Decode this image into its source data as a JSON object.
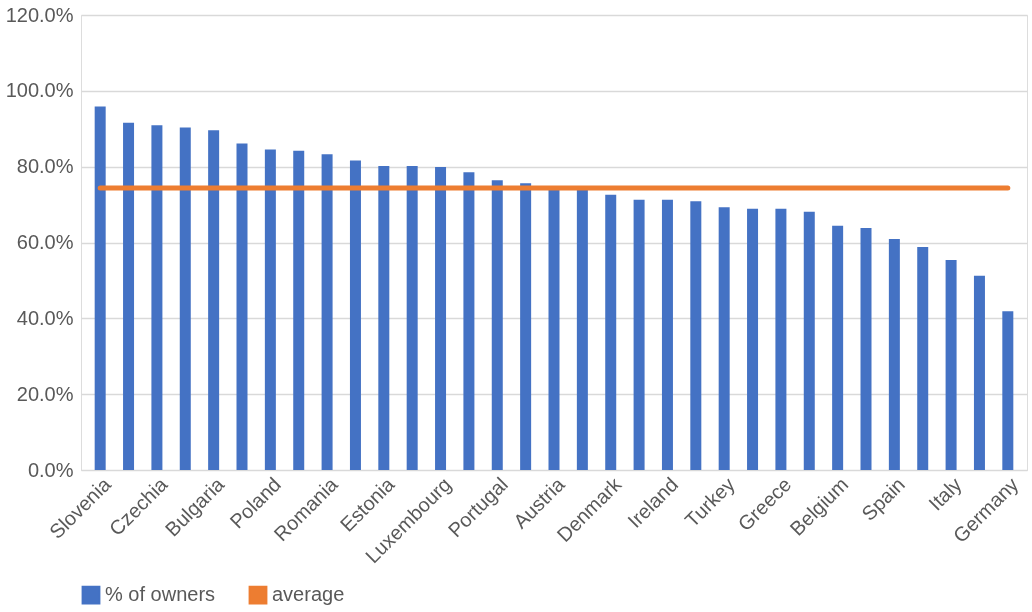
{
  "chart_data": {
    "type": "bar",
    "categories": [
      "Slovenia",
      null,
      "Czechia",
      null,
      "Bulgaria",
      null,
      "Poland",
      null,
      "Romania",
      null,
      "Estonia",
      null,
      "Luxembourg",
      null,
      "Portugal",
      null,
      "Austria",
      null,
      "Denmark",
      null,
      "Ireland",
      null,
      "Turkey",
      null,
      "Greece",
      null,
      "Belgium",
      null,
      "Spain",
      null,
      "Italy",
      null,
      "Germany"
    ],
    "series": [
      {
        "name": "% of owners",
        "color": "#4472c4",
        "values": [
          95.9,
          91.6,
          90.9,
          90.3,
          89.6,
          86.1,
          84.5,
          84.2,
          83.3,
          81.6,
          80.2,
          80.2,
          79.9,
          78.5,
          76.4,
          75.6,
          74.5,
          74.2,
          72.6,
          71.3,
          71.3,
          70.9,
          69.3,
          68.9,
          68.9,
          68.1,
          64.4,
          63.8,
          60.9,
          58.8,
          55.4,
          51.2,
          41.9
        ]
      },
      {
        "name": "average",
        "type": "line",
        "color": "#ed7d31",
        "values": [
          74.4,
          74.4,
          74.4,
          74.4,
          74.4,
          74.4,
          74.4,
          74.4,
          74.4,
          74.4,
          74.4,
          74.4,
          74.4,
          74.4,
          74.4,
          74.4,
          74.4,
          74.4,
          74.4,
          74.4,
          74.4,
          74.4,
          74.4,
          74.4,
          74.4,
          74.4,
          74.4,
          74.4,
          74.4,
          74.4,
          74.4,
          74.4,
          74.4
        ]
      }
    ],
    "ylim": [
      0,
      120
    ],
    "yticks": [
      {
        "value": 0,
        "label": "0.0%"
      },
      {
        "value": 20,
        "label": "20.0%"
      },
      {
        "value": 40,
        "label": "40.0%"
      },
      {
        "value": 60,
        "label": "60.0%"
      },
      {
        "value": 80,
        "label": "80.0%"
      },
      {
        "value": 100,
        "label": "100.0%"
      },
      {
        "value": 120,
        "label": "120.0%"
      }
    ],
    "grid": "y",
    "legend": "bottom"
  }
}
